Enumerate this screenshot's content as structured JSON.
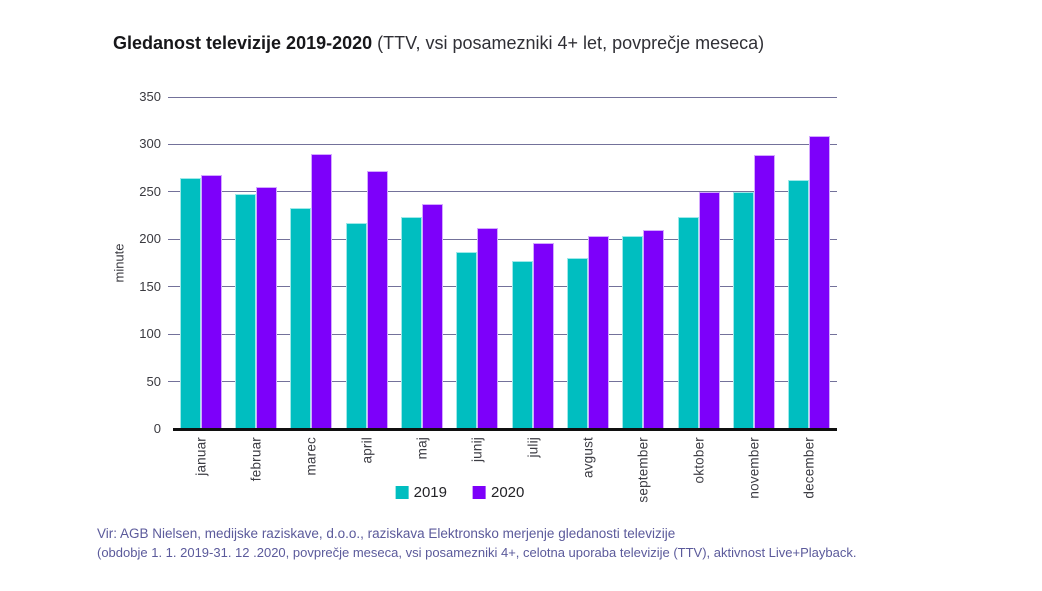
{
  "title": {
    "bold": "Gledanost televizije 2019-2020",
    "regular": " (TTV, vsi posamezniki 4+ let, povprečje meseca)"
  },
  "chart_data": {
    "type": "bar",
    "title": "Gledanost televizije 2019-2020 (TTV, vsi posamezniki 4+ let, povprečje meseca)",
    "xlabel": "",
    "ylabel": "minute",
    "ylim": [
      0,
      350
    ],
    "ytick_step": 50,
    "grid": true,
    "legend_position": "bottom",
    "categories": [
      "januar",
      "februar",
      "marec",
      "april",
      "maj",
      "junij",
      "julij",
      "avgust",
      "september",
      "oktober",
      "november",
      "december"
    ],
    "series": [
      {
        "name": "2019",
        "color": "#00bec0",
        "edge_color": "#9de9e9",
        "values": [
          265,
          248,
          233,
          217,
          223,
          187,
          177,
          180,
          203,
          223,
          250,
          263
        ]
      },
      {
        "name": "2020",
        "color": "#7d00fa",
        "edge_color": "#d3a8ff",
        "values": [
          268,
          255,
          290,
          272,
          237,
          212,
          196,
          204,
          210,
          250,
          289,
          309
        ]
      }
    ]
  },
  "footer": {
    "line1": "Vir: AGB Nielsen, medijske raziskave, d.o.o., raziskava Elektronsko merjenje gledanosti televizije",
    "line2": "(obdobje 1. 1. 2019-31. 12 .2020, povprečje meseca, vsi posamezniki 4+, celotna uporaba televizije (TTV), aktivnost Live+Playback."
  },
  "colors": {
    "series_2019": "#00bec0",
    "series_2020": "#7d00fa",
    "gridline": "#73719a",
    "axis_line": "#101010",
    "tick_label": "#3a3a40",
    "footer_text": "#5b5a9b"
  }
}
